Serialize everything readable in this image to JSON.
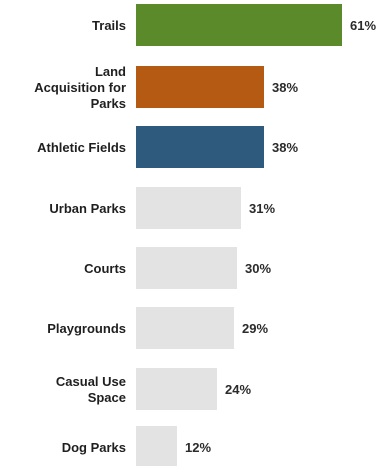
{
  "chart_data": {
    "type": "bar",
    "orientation": "horizontal",
    "categories": [
      "Trails",
      "Land Acquisition for Parks",
      "Athletic Fields",
      "Urban Parks",
      "Courts",
      "Playgrounds",
      "Casual Use Space",
      "Dog Parks"
    ],
    "values": [
      61,
      38,
      38,
      31,
      30,
      29,
      24,
      12
    ],
    "value_labels": [
      "61%",
      "38%",
      "38%",
      "31%",
      "30%",
      "29%",
      "24%",
      "12%"
    ],
    "unit": "%",
    "xlim": [
      0,
      61
    ],
    "grid": false,
    "legend": "none",
    "colors": [
      "#5a8a2a",
      "#b45a12",
      "#2e5a7e",
      "#e3e3e3",
      "#e3e3e3",
      "#e3e3e3",
      "#e3e3e3",
      "#e3e3e3"
    ]
  }
}
